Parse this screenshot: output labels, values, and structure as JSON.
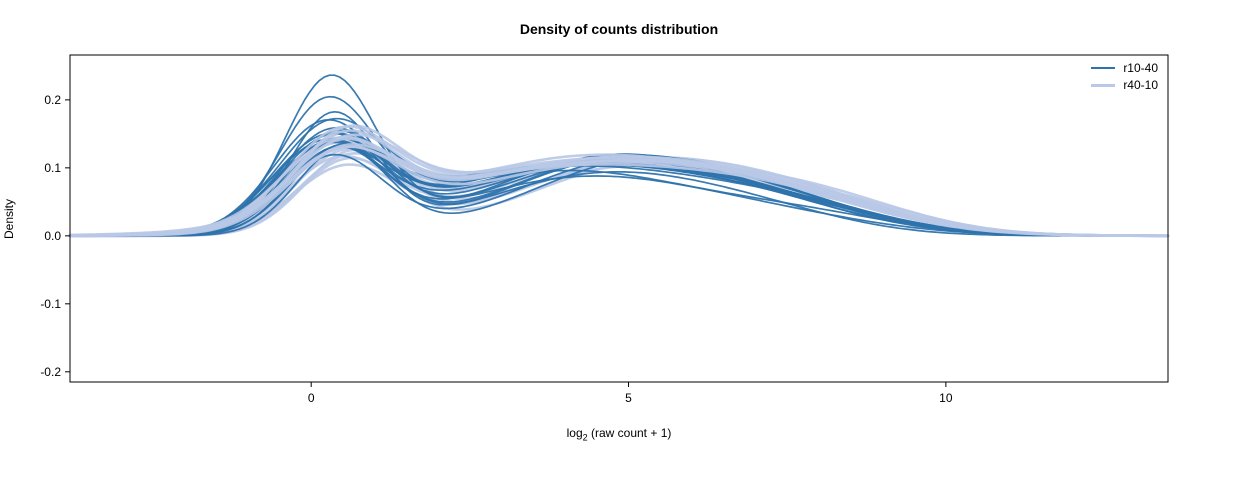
{
  "chart_data": {
    "type": "line",
    "subtype": "density-curves",
    "title": "Density of counts distribution",
    "ylabel": "Density",
    "xlabel_parts": {
      "prefix": "log",
      "sub": "2",
      "suffix": " (raw count + 1)"
    },
    "xlim": [
      -3.8,
      13.5
    ],
    "ylim": [
      -0.215,
      0.266
    ],
    "x_ticks": [
      0,
      5,
      10
    ],
    "x_tick_labels": [
      "0",
      "5",
      "10"
    ],
    "y_ticks": [
      -0.2,
      -0.1,
      0.0,
      0.1,
      0.2
    ],
    "y_tick_labels": [
      "-0.2",
      "-0.1",
      "0.0",
      "0.1",
      "0.2"
    ],
    "grid": false,
    "legend_position": "top-right",
    "curve_model": "y(x) = h1*G(x;m1,s1) + h2*G(x;m2,s2) + h3*G(x;m3,s3); params per curve: [h1,m1,s1,h2,m2,s2,h3,m3,s3]",
    "series_groups": [
      {
        "name": "r10-40",
        "label": "r10-40",
        "color": "#2e73ac",
        "stroke_width": 1.7,
        "opacity": 0.95,
        "curves": [
          [
            0.225,
            0.3,
            0.72,
            0.085,
            4.3,
            2.0,
            0.02,
            7.5,
            1.6
          ],
          [
            0.185,
            0.25,
            0.75,
            0.095,
            4.0,
            2.1,
            0.025,
            7.8,
            1.5
          ],
          [
            0.175,
            0.35,
            0.7,
            0.09,
            4.6,
            1.9,
            0.02,
            7.2,
            1.4
          ],
          [
            0.15,
            0.2,
            0.8,
            0.105,
            4.2,
            2.2,
            0.03,
            7.6,
            1.5
          ],
          [
            0.145,
            0.4,
            0.78,
            0.11,
            4.8,
            2.0,
            0.02,
            8.0,
            1.4
          ],
          [
            0.14,
            0.3,
            0.82,
            0.1,
            3.8,
            2.3,
            0.035,
            7.0,
            1.6
          ],
          [
            0.138,
            0.45,
            0.74,
            0.115,
            5.0,
            1.9,
            0.02,
            8.2,
            1.3
          ],
          [
            0.135,
            0.25,
            0.85,
            0.108,
            4.4,
            2.1,
            0.03,
            7.4,
            1.5
          ],
          [
            0.132,
            0.35,
            0.76,
            0.12,
            4.9,
            2.0,
            0.015,
            8.5,
            1.3
          ],
          [
            0.13,
            0.3,
            0.8,
            0.098,
            4.1,
            2.4,
            0.03,
            7.2,
            1.6
          ],
          [
            0.128,
            0.5,
            0.72,
            0.112,
            5.3,
            1.8,
            0.02,
            8.0,
            1.4
          ],
          [
            0.126,
            0.2,
            0.84,
            0.104,
            4.5,
            2.2,
            0.025,
            7.7,
            1.5
          ],
          [
            0.124,
            0.4,
            0.78,
            0.118,
            5.1,
            2.0,
            0.015,
            8.3,
            1.3
          ],
          [
            0.122,
            0.3,
            0.82,
            0.095,
            3.9,
            2.3,
            0.035,
            6.9,
            1.7
          ],
          [
            0.12,
            0.45,
            0.75,
            0.11,
            4.7,
            2.1,
            0.02,
            7.9,
            1.4
          ],
          [
            0.118,
            0.25,
            0.86,
            0.102,
            4.3,
            2.2,
            0.03,
            7.3,
            1.5
          ],
          [
            0.115,
            0.35,
            0.79,
            0.115,
            5.2,
            1.9,
            0.018,
            8.1,
            1.3
          ],
          [
            0.112,
            0.3,
            0.83,
            0.1,
            4.0,
            2.4,
            0.028,
            7.5,
            1.6
          ]
        ]
      },
      {
        "name": "r40-10",
        "label": "r40-10",
        "color": "#b8c8e6",
        "stroke_width": 2.6,
        "opacity": 0.9,
        "curves": [
          [
            0.135,
            0.55,
            0.8,
            0.105,
            4.6,
            2.2,
            0.03,
            7.8,
            1.6
          ],
          [
            0.13,
            0.45,
            0.85,
            0.112,
            4.2,
            2.3,
            0.035,
            7.4,
            1.7
          ],
          [
            0.128,
            0.6,
            0.78,
            0.098,
            5.0,
            2.1,
            0.04,
            8.0,
            1.5
          ],
          [
            0.125,
            0.5,
            0.82,
            0.108,
            4.4,
            2.4,
            0.03,
            7.6,
            1.6
          ],
          [
            0.122,
            0.4,
            0.88,
            0.115,
            4.8,
            2.2,
            0.025,
            8.2,
            1.4
          ],
          [
            0.12,
            0.55,
            0.8,
            0.1,
            3.9,
            2.5,
            0.045,
            7.0,
            1.8
          ],
          [
            0.118,
            0.65,
            0.76,
            0.11,
            5.2,
            2.0,
            0.03,
            8.4,
            1.4
          ],
          [
            0.116,
            0.45,
            0.84,
            0.104,
            4.3,
            2.3,
            0.04,
            7.2,
            1.7
          ],
          [
            0.114,
            0.55,
            0.81,
            0.118,
            4.9,
            2.1,
            0.022,
            8.6,
            1.3
          ],
          [
            0.112,
            0.4,
            0.87,
            0.096,
            4.1,
            2.5,
            0.042,
            7.1,
            1.8
          ],
          [
            0.11,
            0.6,
            0.78,
            0.108,
            5.4,
            1.9,
            0.03,
            8.1,
            1.4
          ],
          [
            0.108,
            0.5,
            0.85,
            0.102,
            4.5,
            2.3,
            0.035,
            7.7,
            1.6
          ],
          [
            0.106,
            0.45,
            0.82,
            0.114,
            5.0,
            2.1,
            0.024,
            8.3,
            1.4
          ],
          [
            0.104,
            0.55,
            0.86,
            0.094,
            3.8,
            2.6,
            0.046,
            6.9,
            1.8
          ],
          [
            0.102,
            0.6,
            0.79,
            0.106,
            4.7,
            2.2,
            0.032,
            7.9,
            1.5
          ],
          [
            0.1,
            0.45,
            0.88,
            0.1,
            4.2,
            2.4,
            0.04,
            7.3,
            1.7
          ],
          [
            0.098,
            0.55,
            0.83,
            0.112,
            5.3,
            2.0,
            0.026,
            8.2,
            1.4
          ],
          [
            0.096,
            0.5,
            0.85,
            0.098,
            4.0,
            2.5,
            0.038,
            7.4,
            1.7
          ]
        ]
      }
    ]
  }
}
